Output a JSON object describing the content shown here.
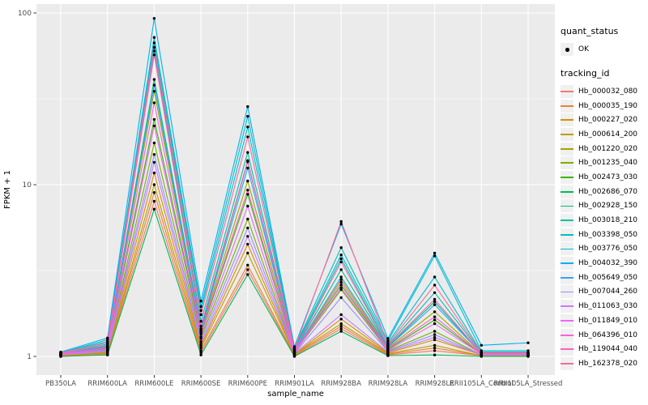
{
  "figure": {
    "background": "#FFFFFF",
    "panel_background": "#EBEBEB",
    "gridline_color": "#FFFFFF",
    "tick_color": "#333333",
    "tick_label_color": "#4D4D4D",
    "point_color": "#000000"
  },
  "axes": {
    "x": {
      "title": "sample_name"
    },
    "y": {
      "title": "FPKM + 1",
      "ticks": [
        {
          "label": "100",
          "value": 100
        },
        {
          "label": "10",
          "value": 10
        },
        {
          "label": "1",
          "value": 1
        }
      ]
    }
  },
  "legend": {
    "quant_status": {
      "title": "quant_status",
      "items": [
        {
          "label": "OK",
          "marker": "point-icon"
        }
      ]
    },
    "tracking_id": {
      "title": "tracking_id",
      "items_source": "chart_data.series"
    }
  },
  "chart_data": {
    "type": "line",
    "title": "",
    "xlabel": "sample_name",
    "ylabel": "FPKM + 1",
    "y_scale": "log10",
    "ylim": [
      1,
      100
    ],
    "grid": "on",
    "legend_position": "right",
    "point_marker": "black-dot-on-every-value",
    "categories": [
      "PB350LA",
      "RRIM600LA",
      "RRIM600LE",
      "RRIM600SE",
      "RRIM600PE",
      "RRIM901LA",
      "RRIM928BA",
      "RRIM928LA",
      "RRIM928LE",
      "RRII105LA_Control",
      "RRII105LA_Stressed"
    ],
    "series": [
      {
        "name": "Hb_000032_080",
        "color": "#F8766D",
        "values": [
          1.0,
          1.03,
          8.0,
          1.05,
          3.2,
          1.01,
          1.45,
          1.02,
          1.08,
          1.01,
          1.01
        ]
      },
      {
        "name": "Hb_000035_190",
        "color": "#EA8331",
        "values": [
          1.01,
          1.04,
          9.0,
          1.08,
          3.4,
          1.02,
          1.5,
          1.03,
          1.12,
          1.01,
          1.01
        ]
      },
      {
        "name": "Hb_000227_020",
        "color": "#D89000",
        "values": [
          1.01,
          1.06,
          11.7,
          1.15,
          4.5,
          1.03,
          1.65,
          1.05,
          1.25,
          1.02,
          1.02
        ]
      },
      {
        "name": "Hb_000614_200",
        "color": "#C09B00",
        "values": [
          1.01,
          1.05,
          10.0,
          1.12,
          4.0,
          1.03,
          1.55,
          1.04,
          1.16,
          1.01,
          1.01
        ]
      },
      {
        "name": "Hb_001220_020",
        "color": "#A3A500",
        "values": [
          1.03,
          1.13,
          35.0,
          1.4,
          10.5,
          1.07,
          2.8,
          1.12,
          1.82,
          1.03,
          1.03
        ]
      },
      {
        "name": "Hb_001235_040",
        "color": "#7CAE00",
        "values": [
          1.02,
          1.09,
          17.5,
          1.27,
          6.3,
          1.05,
          2.45,
          1.08,
          1.4,
          1.02,
          1.02
        ]
      },
      {
        "name": "Hb_002473_030",
        "color": "#39B600",
        "values": [
          1.03,
          1.11,
          24.0,
          1.35,
          8.8,
          1.06,
          2.6,
          1.1,
          1.63,
          1.03,
          1.03
        ]
      },
      {
        "name": "Hb_002686_070",
        "color": "#00BB4E",
        "values": [
          1.0,
          1.02,
          7.2,
          1.02,
          3.0,
          1.0,
          1.4,
          1.01,
          1.02,
          1.0,
          1.0
        ]
      },
      {
        "name": "Hb_002928_150",
        "color": "#00BF7D",
        "values": [
          1.04,
          1.15,
          41.0,
          1.45,
          13.6,
          1.08,
          3.2,
          1.14,
          2.08,
          1.04,
          1.04
        ]
      },
      {
        "name": "Hb_003018_210",
        "color": "#00C1A7",
        "values": [
          1.04,
          1.18,
          60.0,
          1.6,
          15.4,
          1.09,
          3.7,
          1.16,
          2.35,
          1.05,
          1.05
        ]
      },
      {
        "name": "Hb_003398_050",
        "color": "#00BFC4",
        "values": [
          1.05,
          1.25,
          72.0,
          1.95,
          25.0,
          1.12,
          4.3,
          1.23,
          3.85,
          1.08,
          1.08
        ]
      },
      {
        "name": "Hb_003776_050",
        "color": "#00BBDA",
        "values": [
          1.05,
          1.22,
          67.0,
          1.85,
          21.7,
          1.11,
          3.9,
          1.2,
          2.9,
          1.06,
          1.06
        ]
      },
      {
        "name": "Hb_004032_390",
        "color": "#00B0F6",
        "values": [
          1.06,
          1.28,
          93.0,
          2.1,
          28.5,
          1.14,
          5.9,
          1.27,
          4.0,
          1.16,
          1.2
        ]
      },
      {
        "name": "Hb_005649_050",
        "color": "#35A2FF",
        "values": [
          1.03,
          1.14,
          38.0,
          1.42,
          12.5,
          1.07,
          2.9,
          1.13,
          2.0,
          1.04,
          1.04
        ]
      },
      {
        "name": "Hb_007044_260",
        "color": "#9590FF",
        "values": [
          1.02,
          1.08,
          15.0,
          1.22,
          5.6,
          1.04,
          2.2,
          1.07,
          1.34,
          1.02,
          1.02
        ]
      },
      {
        "name": "Hb_011063_030",
        "color": "#C77CFF",
        "values": [
          1.02,
          1.07,
          13.5,
          1.18,
          5.0,
          1.04,
          1.75,
          1.06,
          1.29,
          1.02,
          1.02
        ]
      },
      {
        "name": "Hb_011849_010",
        "color": "#E76BF3",
        "values": [
          1.02,
          1.1,
          22.0,
          1.3,
          7.5,
          1.05,
          2.5,
          1.09,
          1.55,
          1.03,
          1.03
        ]
      },
      {
        "name": "Hb_064396_010",
        "color": "#FA62DB",
        "values": [
          1.03,
          1.12,
          30.0,
          1.38,
          9.3,
          1.06,
          2.7,
          1.11,
          1.7,
          1.03,
          1.03
        ]
      },
      {
        "name": "Hb_119044_040",
        "color": "#FF62BC",
        "values": [
          1.04,
          1.16,
          57.0,
          1.5,
          13.8,
          1.08,
          3.55,
          1.15,
          2.15,
          1.04,
          1.04
        ]
      },
      {
        "name": "Hb_162378_020",
        "color": "#FF6A98",
        "values": [
          1.05,
          1.2,
          63.0,
          1.75,
          19.0,
          1.1,
          6.1,
          1.18,
          2.6,
          1.05,
          1.05
        ]
      }
    ]
  }
}
